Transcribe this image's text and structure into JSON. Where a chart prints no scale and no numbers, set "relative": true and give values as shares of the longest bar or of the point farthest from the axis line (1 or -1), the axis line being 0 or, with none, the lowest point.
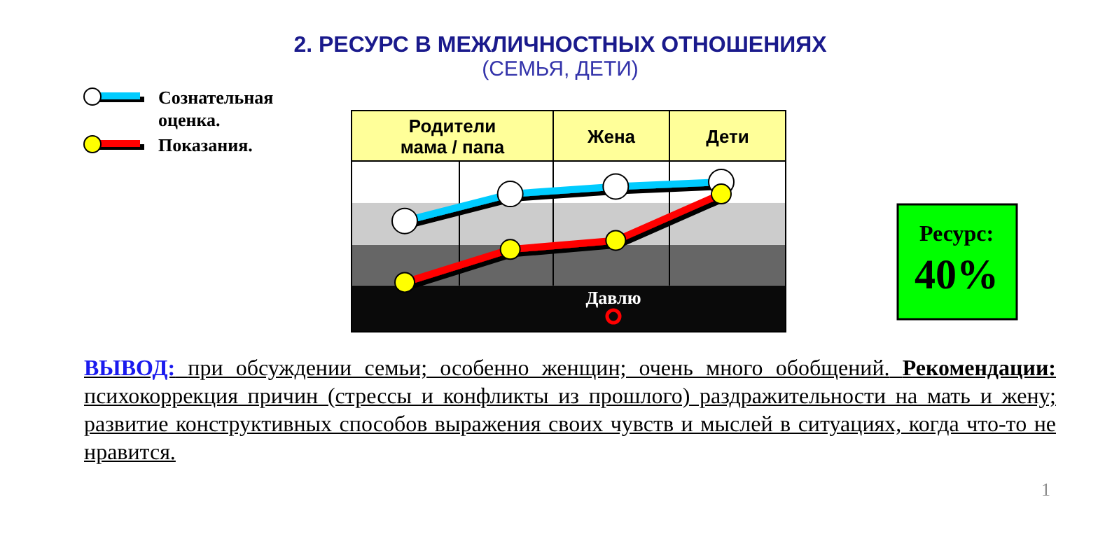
{
  "chart_data": [
    {
      "type": "line",
      "title": "2. РЕСУРС В МЕЖЛИЧНОСТНЫХ ОТНОШЕНИЯХ",
      "subtitle": "(СЕМЬЯ, ДЕТИ)",
      "relative": true,
      "categories": [
        null,
        null,
        null,
        null
      ],
      "series": [
        {
          "name": "Сознательная оценка.",
          "color": "#00ccff",
          "values": [
            0.74,
            0.92,
            0.97,
            1
          ]
        },
        {
          "name": "Показания.",
          "color": "#ff0000",
          "values": [
            0.33,
            0.55,
            0.61,
            0.92
          ]
        }
      ],
      "marker": "circle",
      "line_style": "solid",
      "legend": "top left",
      "grid": "x",
      "bands": [
        {
          "axis": "y",
          "from": 0,
          "to": 0.31,
          "label": "Давлю",
          "color": "#0a0a0a"
        },
        {
          "axis": "y",
          "from": 0.31,
          "to": 0.58,
          "color": "#666666"
        },
        {
          "axis": "y",
          "from": 0.58,
          "to": 0.86,
          "color": "#cccccc"
        }
      ],
      "annotations": [
        "Родители мама / папа",
        "Жена",
        "Дети",
        "ВЫВОД:",
        "при обсуждении семьи; особенно женщин; очень много обобщений.",
        "Рекомендации:",
        "психокоррекция причин (стрессы и конфликты из прошлого) раздражительности на мать и жену; развитие конструктивных способов выражения своих чувств и мыслей в ситуациях, когда что-то не нравится.",
        "1"
      ]
    },
    {
      "type": "other",
      "title": "Ресурс:",
      "annotations": [
        "40%"
      ]
    }
  ]
}
